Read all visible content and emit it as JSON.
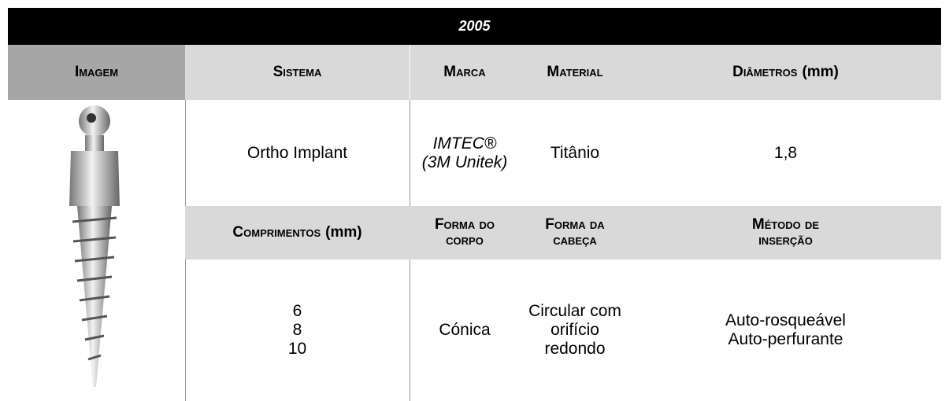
{
  "title": "2005",
  "table": {
    "header": [
      {
        "label": "Imagem"
      },
      {
        "label": "Sistema"
      },
      {
        "label": "Marca"
      },
      {
        "label": "Material"
      },
      {
        "label": "Diâmetros",
        "unit": "(mm)"
      }
    ],
    "row1": {
      "sistema": "Ortho Implant",
      "marca": [
        "IMTEC®",
        "(3M Unitek)"
      ],
      "material": "Titânio",
      "diametros": "1,8"
    },
    "subheader": [
      {
        "label": "Comprimentos",
        "unit": "(mm)"
      },
      {
        "label": "Forma do corpo"
      },
      {
        "label": "Forma da cabeça"
      },
      {
        "label": "Método de inserção"
      }
    ],
    "row2": {
      "comprimentos": [
        "6",
        "8",
        "10"
      ],
      "forma_corpo": "Cónica",
      "forma_cabeca": "Circular com orifício redondo",
      "metodo": [
        "Auto-rosqueável",
        "Auto-perfurante"
      ]
    }
  }
}
